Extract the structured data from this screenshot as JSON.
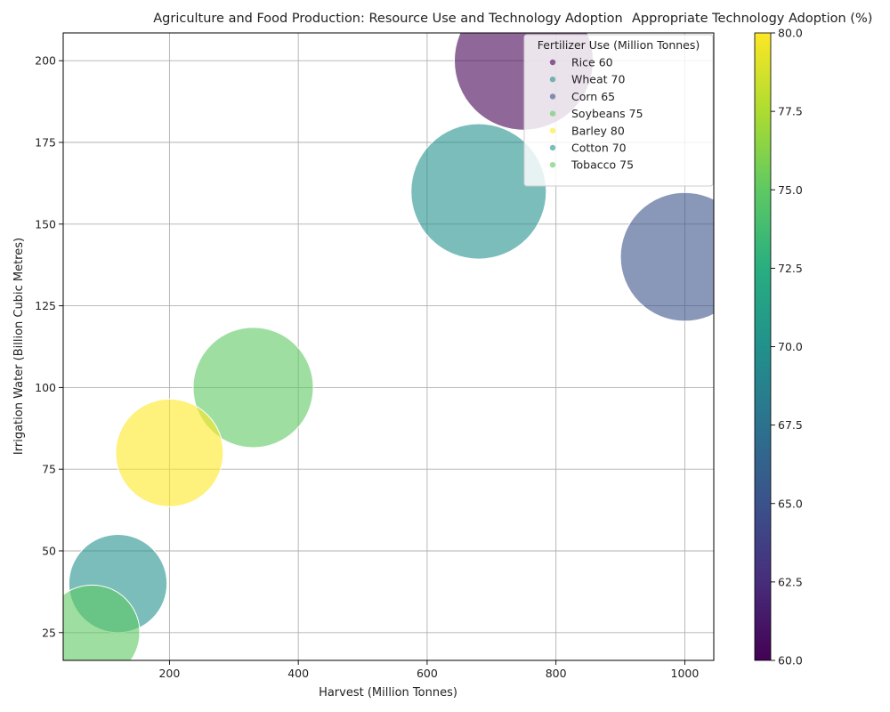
{
  "chart_data": {
    "type": "scatter",
    "title": "Agriculture and Food Production: Resource Use and Technology Adoption",
    "xlabel": "Harvest (Million Tonnes)",
    "ylabel": "Irrigation Water (Billion Cubic Metres)",
    "xlim": [
      35,
      1045
    ],
    "ylim": [
      16.5,
      208.5
    ],
    "xticks": [
      200,
      400,
      600,
      800,
      1000
    ],
    "yticks": [
      25,
      50,
      75,
      100,
      125,
      150,
      175,
      200
    ],
    "grid": true,
    "legend_title": "Fertilizer Use (Million Tonnes)",
    "legend_position": "upper-right",
    "colorbar": {
      "label": "Appropriate Technology Adoption (%)",
      "range": [
        60,
        80
      ],
      "ticks": [
        "60.0",
        "62.5",
        "65.0",
        "67.5",
        "70.0",
        "72.5",
        "75.0",
        "77.5",
        "80.0"
      ]
    },
    "points": [
      {
        "label": "Rice 60",
        "harvest": 750,
        "water": 200,
        "adoption": 60,
        "size_rel": 1.0,
        "color": "#440154"
      },
      {
        "label": "Wheat 70",
        "harvest": 680,
        "water": 160,
        "adoption": 70,
        "size_rel": 0.95,
        "color": "#21918c"
      },
      {
        "label": "Corn 65",
        "harvest": 1000,
        "water": 140,
        "adoption": 65,
        "size_rel": 0.86,
        "color": "#3b528b"
      },
      {
        "label": "Soybeans 75",
        "harvest": 330,
        "water": 100,
        "adoption": 75,
        "size_rel": 0.75,
        "color": "#5ec962"
      },
      {
        "label": "Barley 80",
        "harvest": 200,
        "water": 80,
        "adoption": 80,
        "size_rel": 0.6,
        "color": "#fde725"
      },
      {
        "label": "Cotton 70",
        "harvest": 120,
        "water": 40,
        "adoption": 70,
        "size_rel": 0.5,
        "color": "#21918c"
      },
      {
        "label": "Tobacco 75",
        "harvest": 80,
        "water": 25,
        "adoption": 75,
        "size_rel": 0.47,
        "color": "#5ec962"
      }
    ]
  }
}
